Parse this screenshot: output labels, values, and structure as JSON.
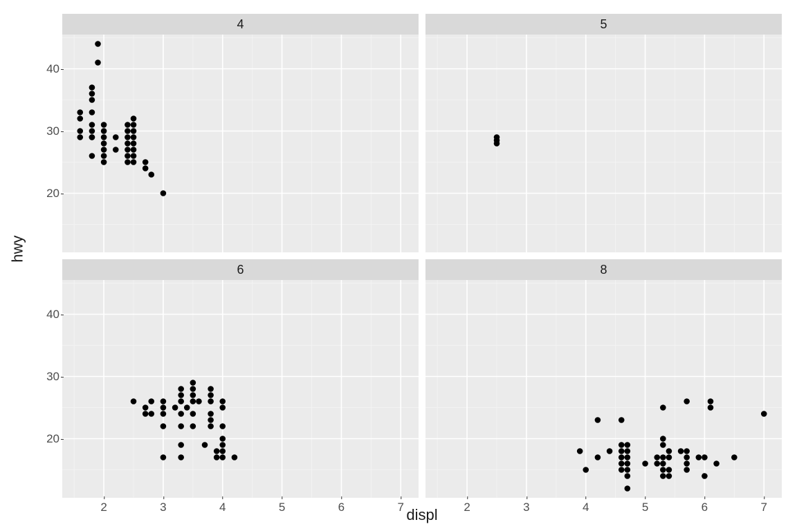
{
  "type": "scatter-facet-grid",
  "background_color": "#ffffff",
  "panel_background": "#ebebeb",
  "strip_background": "#d9d9d9",
  "grid_major_color": "#ffffff",
  "grid_minor_color": "#f4f4f4",
  "point_color": "#000000",
  "point_radius": 4.3,
  "axis_text_color": "#4d4d4d",
  "axis_title_fontsize": 22,
  "axis_tick_fontsize": 17,
  "strip_fontsize": 18,
  "x": {
    "label": "displ",
    "lim": [
      1.3,
      7.3
    ],
    "major_ticks": [
      2,
      3,
      4,
      5,
      6,
      7
    ],
    "minor_ticks": [
      1.5,
      2.5,
      3.5,
      4.5,
      5.5,
      6.5
    ]
  },
  "y": {
    "label": "hwy",
    "lim": [
      10.5,
      45.5
    ],
    "major_ticks": [
      20,
      30,
      40
    ],
    "minor_ticks": [
      15,
      25,
      35,
      45
    ]
  },
  "facets": [
    {
      "label": "4",
      "show_y_ticks": true,
      "show_x_ticks": false,
      "points": [
        [
          1.6,
          29
        ],
        [
          1.6,
          30
        ],
        [
          1.6,
          32
        ],
        [
          1.6,
          33
        ],
        [
          1.8,
          29
        ],
        [
          1.8,
          31
        ],
        [
          1.8,
          36
        ],
        [
          1.8,
          26
        ],
        [
          1.8,
          29
        ],
        [
          1.8,
          30
        ],
        [
          1.8,
          33
        ],
        [
          1.8,
          35
        ],
        [
          1.8,
          37
        ],
        [
          1.9,
          44
        ],
        [
          1.9,
          41
        ],
        [
          2.0,
          25
        ],
        [
          2.0,
          26
        ],
        [
          2.0,
          27
        ],
        [
          2.0,
          28
        ],
        [
          2.0,
          29
        ],
        [
          2.0,
          30
        ],
        [
          2.0,
          31
        ],
        [
          2.2,
          27
        ],
        [
          2.2,
          29
        ],
        [
          2.4,
          25
        ],
        [
          2.4,
          26
        ],
        [
          2.4,
          27
        ],
        [
          2.4,
          28
        ],
        [
          2.4,
          29
        ],
        [
          2.4,
          30
        ],
        [
          2.4,
          31
        ],
        [
          2.5,
          25
        ],
        [
          2.5,
          26
        ],
        [
          2.5,
          27
        ],
        [
          2.5,
          28
        ],
        [
          2.5,
          29
        ],
        [
          2.5,
          30
        ],
        [
          2.5,
          31
        ],
        [
          2.5,
          32
        ],
        [
          2.7,
          24
        ],
        [
          2.7,
          25
        ],
        [
          2.8,
          23
        ],
        [
          3.0,
          20
        ]
      ]
    },
    {
      "label": "5",
      "show_y_ticks": false,
      "show_x_ticks": false,
      "points": [
        [
          2.5,
          28
        ],
        [
          2.5,
          29
        ],
        [
          2.5,
          28.5
        ]
      ]
    },
    {
      "label": "6",
      "show_y_ticks": true,
      "show_x_ticks": true,
      "points": [
        [
          2.5,
          26
        ],
        [
          2.7,
          24
        ],
        [
          2.7,
          25
        ],
        [
          2.8,
          24
        ],
        [
          2.8,
          26
        ],
        [
          3.0,
          22
        ],
        [
          3.0,
          24
        ],
        [
          3.0,
          25
        ],
        [
          3.0,
          26
        ],
        [
          3.0,
          17
        ],
        [
          3.2,
          25
        ],
        [
          3.3,
          17
        ],
        [
          3.3,
          19
        ],
        [
          3.3,
          22
        ],
        [
          3.3,
          24
        ],
        [
          3.3,
          26
        ],
        [
          3.3,
          27
        ],
        [
          3.3,
          28
        ],
        [
          3.4,
          25
        ],
        [
          3.5,
          22
        ],
        [
          3.5,
          24
        ],
        [
          3.5,
          26
        ],
        [
          3.5,
          27
        ],
        [
          3.5,
          28
        ],
        [
          3.5,
          29
        ],
        [
          3.6,
          26
        ],
        [
          3.7,
          19
        ],
        [
          3.8,
          22
        ],
        [
          3.8,
          23
        ],
        [
          3.8,
          24
        ],
        [
          3.8,
          26
        ],
        [
          3.8,
          27
        ],
        [
          3.8,
          28
        ],
        [
          3.9,
          17
        ],
        [
          3.9,
          18
        ],
        [
          4.0,
          17
        ],
        [
          4.0,
          18
        ],
        [
          4.0,
          19
        ],
        [
          4.0,
          20
        ],
        [
          4.0,
          22
        ],
        [
          4.0,
          25
        ],
        [
          4.0,
          26
        ],
        [
          4.2,
          17
        ]
      ]
    },
    {
      "label": "8",
      "show_y_ticks": false,
      "show_x_ticks": true,
      "points": [
        [
          3.9,
          18
        ],
        [
          4.0,
          15
        ],
        [
          4.2,
          17
        ],
        [
          4.2,
          23
        ],
        [
          4.4,
          18
        ],
        [
          4.6,
          15
        ],
        [
          4.6,
          16
        ],
        [
          4.6,
          17
        ],
        [
          4.6,
          18
        ],
        [
          4.6,
          19
        ],
        [
          4.6,
          23
        ],
        [
          4.7,
          12
        ],
        [
          4.7,
          14
        ],
        [
          4.7,
          15
        ],
        [
          4.7,
          16
        ],
        [
          4.7,
          17
        ],
        [
          4.7,
          18
        ],
        [
          4.7,
          19
        ],
        [
          5.0,
          16
        ],
        [
          5.2,
          16
        ],
        [
          5.2,
          17
        ],
        [
          5.3,
          14
        ],
        [
          5.3,
          15
        ],
        [
          5.3,
          16
        ],
        [
          5.3,
          17
        ],
        [
          5.3,
          19
        ],
        [
          5.3,
          20
        ],
        [
          5.3,
          25
        ],
        [
          5.4,
          14
        ],
        [
          5.4,
          15
        ],
        [
          5.4,
          17
        ],
        [
          5.4,
          18
        ],
        [
          5.6,
          18
        ],
        [
          5.7,
          15
        ],
        [
          5.7,
          16
        ],
        [
          5.7,
          17
        ],
        [
          5.7,
          18
        ],
        [
          5.7,
          26
        ],
        [
          5.9,
          17
        ],
        [
          6.0,
          14
        ],
        [
          6.0,
          17
        ],
        [
          6.1,
          25
        ],
        [
          6.1,
          26
        ],
        [
          6.2,
          16
        ],
        [
          6.5,
          17
        ],
        [
          7.0,
          24
        ]
      ]
    }
  ]
}
